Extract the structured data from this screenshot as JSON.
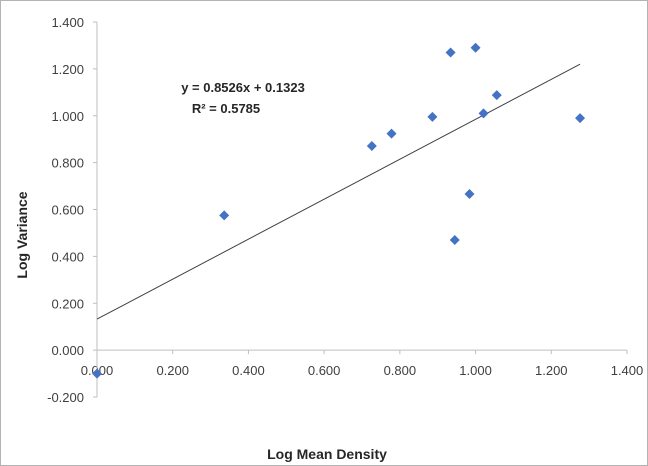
{
  "chart_data": {
    "type": "scatter",
    "xlabel": "Log Mean Density",
    "ylabel": "Log Variance",
    "xlim": [
      0,
      1.4
    ],
    "ylim": [
      -0.2,
      1.4
    ],
    "x_ticks": [
      "0.000",
      "0.200",
      "0.400",
      "0.600",
      "0.800",
      "1.000",
      "1.200",
      "1.400"
    ],
    "y_ticks": [
      "-0.200",
      "0.000",
      "0.200",
      "0.400",
      "0.600",
      "0.800",
      "1.000",
      "1.200",
      "1.400"
    ],
    "grid": false,
    "legend": "none",
    "marker": "diamond",
    "marker_color": "#4472c4",
    "trendline_color": "#404040",
    "points": [
      {
        "x": 0.0,
        "y": -0.1
      },
      {
        "x": 0.336,
        "y": 0.575
      },
      {
        "x": 0.726,
        "y": 0.871
      },
      {
        "x": 0.778,
        "y": 0.924
      },
      {
        "x": 0.886,
        "y": 0.995
      },
      {
        "x": 0.934,
        "y": 1.27
      },
      {
        "x": 0.945,
        "y": 0.47
      },
      {
        "x": 0.984,
        "y": 0.666
      },
      {
        "x": 1.0,
        "y": 1.29
      },
      {
        "x": 1.021,
        "y": 1.01
      },
      {
        "x": 1.056,
        "y": 1.088
      },
      {
        "x": 1.276,
        "y": 0.99
      }
    ],
    "trendline": {
      "slope": 0.8526,
      "intercept": 0.1323,
      "x_range": [
        0,
        1.276
      ],
      "equation": "y = 0.8526x + 0.1323",
      "r_squared": "R² = 0.5785"
    }
  }
}
